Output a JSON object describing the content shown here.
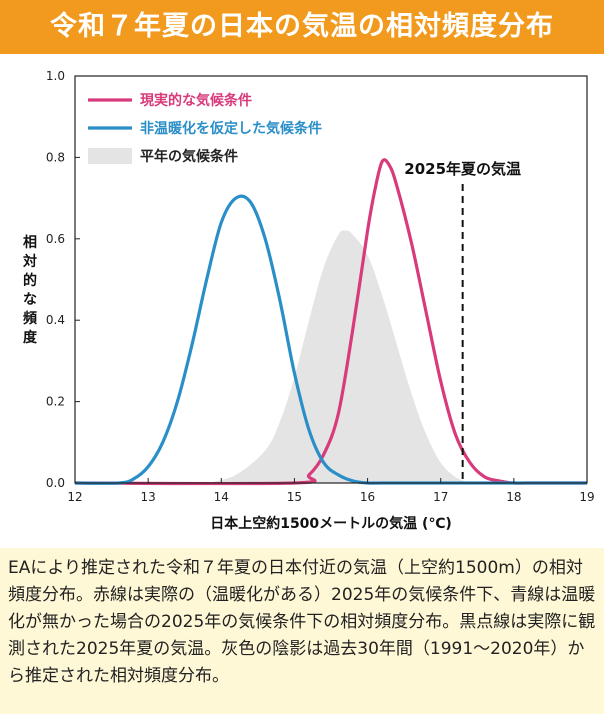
{
  "banner": {
    "title": "令和７年夏の日本の気温の相対頻度分布"
  },
  "chart_data": {
    "type": "line",
    "xlabel": "日本上空約1500メートルの気温 (℃)",
    "ylabel": "相対的な頻度",
    "xlim": [
      12,
      19
    ],
    "ylim": [
      0,
      1.0
    ],
    "x_ticks": [
      "12",
      "13",
      "14",
      "15",
      "16",
      "17",
      "18",
      "19"
    ],
    "y_ticks": [
      "0.0",
      "0.2",
      "0.4",
      "0.6",
      "0.8",
      "1.0"
    ],
    "legend_placement": "top-left",
    "annotation": "2025年夏の気温",
    "observed_2025_temp": 17.3,
    "series": [
      {
        "name": "現実的な気候条件",
        "style": "line",
        "color": "#d83a7c",
        "x": [
          15.0,
          15.2,
          15.4,
          15.6,
          15.8,
          16.0,
          16.1,
          16.2,
          16.3,
          16.4,
          16.6,
          16.8,
          17.0,
          17.2,
          17.4,
          17.6,
          17.8,
          18.0,
          18.2
        ],
        "y": [
          0.0,
          0.02,
          0.07,
          0.17,
          0.38,
          0.62,
          0.72,
          0.79,
          0.78,
          0.73,
          0.59,
          0.42,
          0.25,
          0.12,
          0.05,
          0.015,
          0.005,
          0.0,
          0.0
        ]
      },
      {
        "name": "非温暖化を仮定した気候条件",
        "style": "line",
        "color": "#2a8ec8",
        "x": [
          12.0,
          12.6,
          12.8,
          13.0,
          13.2,
          13.4,
          13.6,
          13.8,
          14.0,
          14.2,
          14.4,
          14.6,
          14.8,
          15.0,
          15.2,
          15.4,
          15.6,
          15.8,
          16.0,
          16.4
        ],
        "y": [
          0.0,
          0.0,
          0.01,
          0.04,
          0.1,
          0.2,
          0.34,
          0.5,
          0.64,
          0.7,
          0.69,
          0.6,
          0.45,
          0.27,
          0.13,
          0.05,
          0.02,
          0.005,
          0.0,
          0.0
        ]
      },
      {
        "name": "平年の気候条件",
        "style": "area",
        "color": "#e4e4e4",
        "x": [
          13.8,
          14.2,
          14.6,
          14.8,
          15.0,
          15.2,
          15.4,
          15.6,
          15.7,
          15.8,
          16.0,
          16.2,
          16.4,
          16.6,
          16.8,
          17.0,
          17.2,
          17.4
        ],
        "y": [
          0.0,
          0.02,
          0.08,
          0.15,
          0.26,
          0.4,
          0.53,
          0.61,
          0.62,
          0.61,
          0.56,
          0.46,
          0.34,
          0.22,
          0.12,
          0.05,
          0.015,
          0.0
        ]
      }
    ]
  },
  "caption": "EAにより推定された令和７年夏の日本付近の気温（上空約1500m）の相対頻度分布。赤線は実際の（温暖化がある）2025年の気候条件下、青線は温暖化が無かった場合の2025年の気候条件下の相対頻度分布。黒点線は実際に観測された2025年夏の気温。灰色の陰影は過去30年間（1991～2020年）から推定された相対頻度分布。"
}
